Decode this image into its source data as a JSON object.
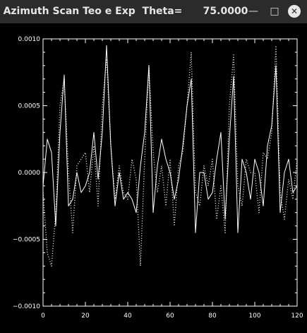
{
  "window": {
    "title": "Azimuth Scan Teo e Exp  Theta=      75.0000",
    "minimize_glyph": "—",
    "maximize_glyph": "□",
    "close_glyph": "✕"
  },
  "chart_data": {
    "type": "line",
    "title": "",
    "xlabel": "",
    "ylabel": "",
    "xlim": [
      0,
      120
    ],
    "ylim": [
      -0.001,
      0.001
    ],
    "x_ticks": [
      "0",
      "20",
      "40",
      "60",
      "80",
      "100",
      "120"
    ],
    "y_ticks": [
      "0.0010",
      "0.0005",
      "0.0000",
      "−0.0005",
      "−0.0010"
    ],
    "x_tick_values": [
      0,
      20,
      40,
      60,
      80,
      100,
      120
    ],
    "y_tick_values": [
      0.001,
      0.0005,
      0,
      -0.0005,
      -0.001
    ],
    "grid": false,
    "legend": "none",
    "background": "#000000",
    "line_color": "#ffffff",
    "series": [
      {
        "style": "solid",
        "x": [
          0,
          2,
          4,
          6,
          8,
          10,
          12,
          14,
          16,
          18,
          20,
          22,
          24,
          26,
          28,
          30,
          32,
          34,
          36,
          38,
          40,
          42,
          44,
          46,
          48,
          50,
          52,
          54,
          56,
          58,
          60,
          62,
          64,
          66,
          68,
          70,
          72,
          74,
          76,
          78,
          80,
          82,
          84,
          86,
          88,
          90,
          92,
          94,
          96,
          98,
          100,
          102,
          104,
          106,
          108,
          110,
          112,
          114,
          116,
          118,
          120
        ],
        "values": [
          -0.0001,
          0.00025,
          0.00015,
          -0.0004,
          0.0003,
          0.00073,
          -0.00025,
          -0.0002,
          0.0,
          -0.00015,
          -0.0001,
          0.0,
          0.0003,
          -5e-05,
          0.0003,
          0.00095,
          0.0002,
          -0.00025,
          0.0,
          -0.0002,
          -0.00015,
          -0.0002,
          -0.0003,
          5e-05,
          0.0003,
          0.0008,
          -0.0003,
          5e-05,
          0.00025,
          0.0001,
          0.0,
          -0.0002,
          -5e-05,
          0.0002,
          0.0005,
          0.0007,
          -0.00045,
          0.0,
          0.0,
          -0.0002,
          -0.00015,
          0.0001,
          0.0003,
          -0.00035,
          0.00025,
          0.00072,
          -0.00045,
          0.0001,
          0.0,
          -0.0002,
          0.0001,
          0.0,
          -0.00025,
          0.0002,
          0.00035,
          0.0008,
          -0.0003,
          0.0,
          0.0001,
          -0.00015,
          -0.0001
        ]
      },
      {
        "style": "dotted",
        "x": [
          0,
          2,
          4,
          6,
          8,
          10,
          12,
          14,
          16,
          18,
          20,
          22,
          24,
          26,
          28,
          30,
          32,
          34,
          36,
          38,
          40,
          42,
          44,
          46,
          48,
          50,
          52,
          54,
          56,
          58,
          60,
          62,
          64,
          66,
          68,
          70,
          72,
          74,
          76,
          78,
          80,
          82,
          84,
          86,
          88,
          90,
          92,
          94,
          96,
          98,
          100,
          102,
          104,
          106,
          108,
          110,
          112,
          114,
          116,
          118,
          120
        ],
        "values": [
          -0.00015,
          -0.0006,
          -0.0007,
          -0.0003,
          0.0005,
          0.0007,
          0.0,
          -0.00045,
          5e-05,
          0.0001,
          0.00015,
          -0.00015,
          0.0002,
          -0.00025,
          0.0005,
          0.00085,
          0.0002,
          -0.0002,
          5e-05,
          -0.00015,
          -0.0002,
          0.0001,
          -5e-05,
          -0.0007,
          0.0001,
          0.0008,
          0.00015,
          -0.00015,
          5e-05,
          -0.00025,
          0.0001,
          -0.0004,
          5e-05,
          0.00015,
          0.0005,
          0.0009,
          -0.00015,
          -0.00025,
          5e-05,
          -0.0001,
          0.0001,
          -0.00035,
          -0.0001,
          -0.00045,
          0.0005,
          0.00088,
          -0.0001,
          -0.00025,
          0.0001,
          0.0,
          0.0,
          -0.0003,
          0.00015,
          0.0001,
          0.0003,
          0.00095,
          -0.00015,
          -0.00035,
          -5e-05,
          -0.0002,
          0.0001
        ]
      }
    ]
  }
}
